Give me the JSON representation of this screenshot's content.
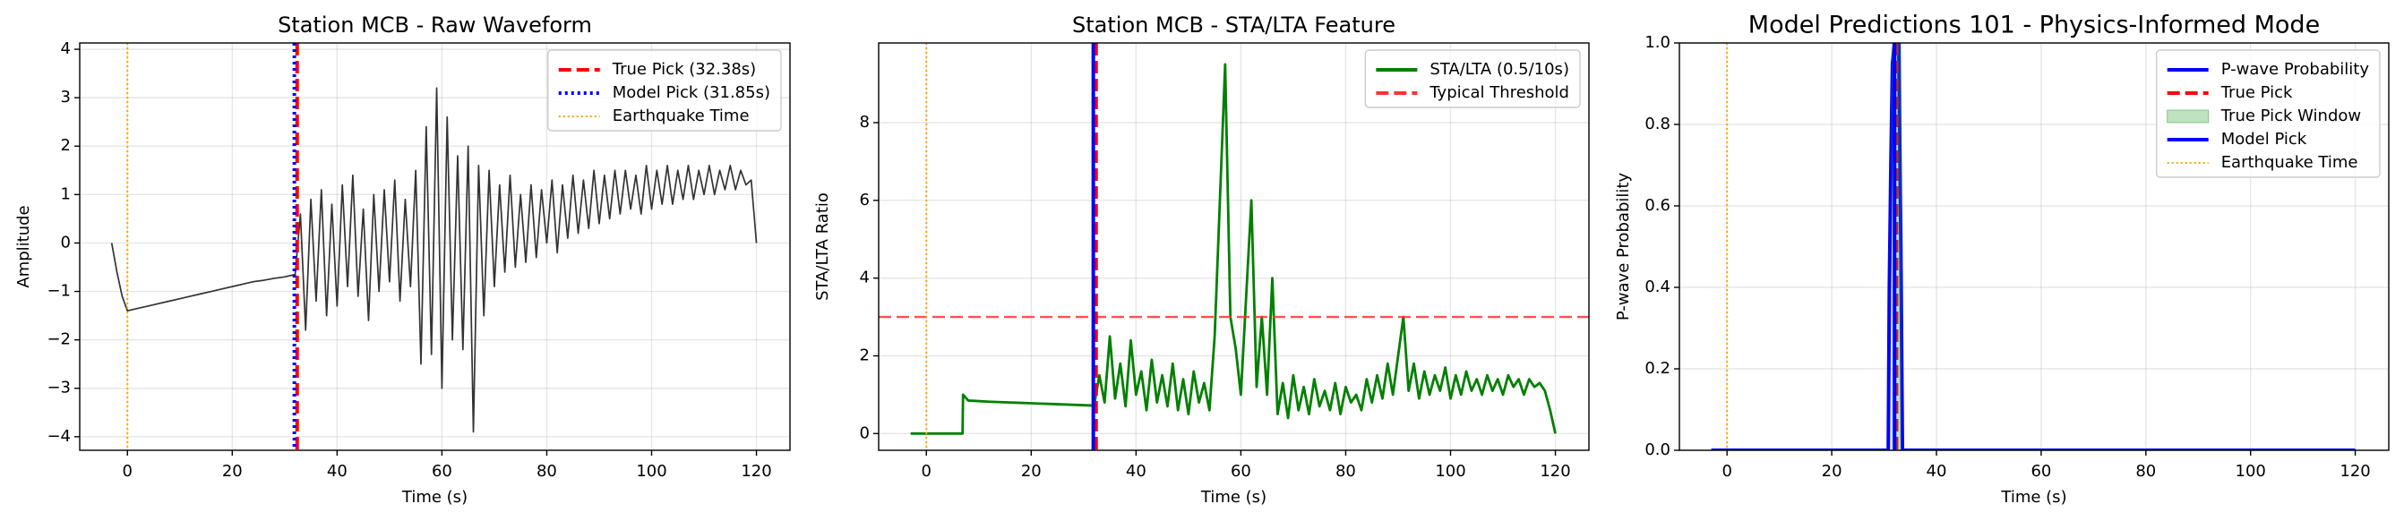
{
  "chart_data": [
    {
      "type": "line",
      "title": "Station MCB - Raw Waveform",
      "xlabel": "Time (s)",
      "ylabel": "Amplitude",
      "x": [
        -3,
        -2,
        -1,
        0,
        2,
        4,
        6,
        8,
        10,
        12,
        14,
        16,
        18,
        20,
        22,
        24,
        26,
        28,
        30,
        32,
        33,
        34,
        35,
        36,
        37,
        38,
        39,
        40,
        41,
        42,
        43,
        44,
        45,
        46,
        47,
        48,
        49,
        50,
        51,
        52,
        53,
        54,
        55,
        56,
        57,
        58,
        59,
        60,
        61,
        62,
        63,
        64,
        65,
        66,
        67,
        68,
        69,
        70,
        71,
        72,
        73,
        74,
        75,
        76,
        77,
        78,
        79,
        80,
        81,
        82,
        83,
        84,
        85,
        86,
        87,
        88,
        89,
        90,
        91,
        92,
        93,
        94,
        95,
        96,
        97,
        98,
        99,
        100,
        101,
        102,
        103,
        104,
        105,
        106,
        107,
        108,
        109,
        110,
        111,
        112,
        113,
        114,
        115,
        116,
        117,
        118,
        119,
        120
      ],
      "values": [
        0,
        -0.6,
        -1.1,
        -1.4,
        -1.35,
        -1.3,
        -1.25,
        -1.2,
        -1.15,
        -1.1,
        -1.05,
        -1.0,
        -0.95,
        -0.9,
        -0.85,
        -0.8,
        -0.77,
        -0.73,
        -0.7,
        -0.65,
        0.6,
        -1.8,
        0.9,
        -1.2,
        1.1,
        -1.5,
        0.8,
        -1.3,
        1.2,
        -0.9,
        1.4,
        -1.1,
        0.7,
        -1.6,
        1.0,
        -1.0,
        1.1,
        -0.8,
        1.3,
        -1.2,
        0.9,
        -0.9,
        1.5,
        -2.5,
        2.4,
        -2.3,
        3.2,
        -3.0,
        2.6,
        -2.0,
        1.8,
        -2.2,
        2.0,
        -3.9,
        1.6,
        -1.5,
        1.5,
        -0.9,
        1.2,
        -0.6,
        1.4,
        -0.5,
        1.0,
        -0.4,
        1.2,
        -0.3,
        1.1,
        0.0,
        1.3,
        -0.2,
        1.2,
        0.1,
        1.4,
        0.2,
        1.3,
        0.3,
        1.5,
        0.4,
        1.4,
        0.5,
        1.5,
        0.6,
        1.5,
        0.7,
        1.4,
        0.6,
        1.6,
        0.7,
        1.5,
        0.8,
        1.6,
        0.8,
        1.5,
        0.9,
        1.6,
        0.9,
        1.5,
        1.0,
        1.6,
        1.0,
        1.5,
        1.1,
        1.6,
        1.1,
        1.5,
        1.2,
        1.3,
        0
      ],
      "color": "#333333",
      "overlays": [
        {
          "kind": "vline",
          "name": "True Pick (32.38s)",
          "value": 32.38,
          "color": "#ff0000",
          "dash": "dashed"
        },
        {
          "kind": "vline",
          "name": "Model Pick (31.85s)",
          "value": 31.85,
          "color": "#0000ff",
          "dash": "dotted"
        },
        {
          "kind": "vline",
          "name": "Earthquake Time",
          "value": 0,
          "color": "#ffa500",
          "dash": "finedot"
        }
      ],
      "xlim": [
        -9.1,
        126.4
      ],
      "xticks": [
        0,
        20,
        40,
        60,
        80,
        100,
        120
      ],
      "ylim": [
        -4.28,
        4.13
      ],
      "yticks": [
        {
          "value": -4,
          "label": "−4"
        },
        {
          "value": -3,
          "label": "−3"
        },
        {
          "value": -2,
          "label": "−2"
        },
        {
          "value": -1,
          "label": "−1"
        },
        0,
        1,
        2,
        3,
        4
      ],
      "grid": true,
      "legend": "upper right"
    },
    {
      "type": "line",
      "title": "Station MCB - STA/LTA Feature",
      "xlabel": "Time (s)",
      "ylabel": "STA/LTA Ratio",
      "series": [
        {
          "name": "STA/LTA (0.5/10s)",
          "color": "#008000",
          "x": [
            -3,
            6.9,
            7,
            8,
            12,
            16,
            20,
            24,
            28,
            32,
            33,
            34,
            35,
            36,
            37,
            38,
            39,
            40,
            41,
            42,
            43,
            44,
            45,
            46,
            47,
            48,
            49,
            50,
            51,
            52,
            53,
            54,
            55,
            56,
            57,
            58,
            59,
            60,
            61,
            62,
            63,
            64,
            65,
            66,
            67,
            68,
            69,
            70,
            71,
            72,
            73,
            74,
            75,
            76,
            77,
            78,
            79,
            80,
            81,
            82,
            83,
            84,
            85,
            86,
            87,
            88,
            89,
            90,
            91,
            92,
            93,
            94,
            95,
            96,
            97,
            98,
            99,
            100,
            101,
            102,
            103,
            104,
            105,
            106,
            107,
            108,
            109,
            110,
            111,
            112,
            113,
            114,
            115,
            116,
            117,
            118,
            119,
            120
          ],
          "values": [
            0,
            0,
            1.0,
            0.85,
            0.82,
            0.8,
            0.78,
            0.76,
            0.74,
            0.72,
            1.5,
            0.8,
            2.5,
            0.9,
            1.8,
            0.7,
            2.4,
            1.0,
            1.6,
            0.6,
            1.9,
            0.8,
            1.5,
            0.7,
            1.8,
            0.6,
            1.4,
            0.5,
            1.6,
            0.8,
            1.3,
            0.6,
            2.5,
            6.0,
            9.5,
            3.0,
            2.2,
            1.0,
            3.5,
            6.0,
            1.2,
            3.0,
            1.0,
            4.0,
            0.5,
            1.3,
            0.4,
            1.5,
            0.6,
            1.2,
            0.5,
            1.4,
            0.7,
            1.1,
            0.6,
            1.3,
            0.5,
            1.2,
            0.8,
            1.0,
            0.6,
            1.4,
            0.8,
            1.5,
            0.9,
            1.8,
            1.0,
            2.0,
            3.0,
            1.1,
            1.8,
            0.9,
            1.6,
            1.0,
            1.5,
            1.1,
            1.7,
            0.9,
            1.5,
            1.0,
            1.6,
            1.1,
            1.4,
            1.0,
            1.5,
            1.1,
            1.4,
            1.0,
            1.5,
            1.2,
            1.4,
            1.0,
            1.4,
            1.2,
            1.3,
            1.1,
            0.6,
            0.0
          ]
        }
      ],
      "overlays": [
        {
          "kind": "hline",
          "name": "Typical Threshold",
          "value": 3,
          "color": "#ff3333",
          "dash": "dashed"
        },
        {
          "kind": "vline",
          "value": 32.38,
          "color": "#ff0000",
          "dash": "dashed"
        },
        {
          "kind": "vline",
          "value": 31.85,
          "color": "#0000ff",
          "dash": "solid"
        },
        {
          "kind": "vline",
          "value": 0,
          "color": "#ffa500",
          "dash": "finedot"
        }
      ],
      "xlim": [
        -9.1,
        126.4
      ],
      "xticks": [
        0,
        20,
        40,
        60,
        80,
        100,
        120
      ],
      "ylim": [
        -0.43,
        10.05
      ],
      "yticks": [
        0,
        2,
        4,
        6,
        8
      ],
      "grid": true,
      "legend": "upper right"
    },
    {
      "type": "line",
      "title": "Model Predictions 101 - Physics-Informed Mode",
      "xlabel": "Time (s)",
      "ylabel": "P-wave Probability",
      "series": [
        {
          "name": "P-wave Probability",
          "color": "#0000ff",
          "x": [
            -3,
            30.8,
            31,
            31.3,
            31.6,
            32,
            32.4,
            32.8,
            33.2,
            33.5,
            120
          ],
          "values": [
            0,
            0,
            0.4,
            0.7,
            0.95,
            1.0,
            1.0,
            1.0,
            0.5,
            0,
            0
          ]
        }
      ],
      "overlays": [
        {
          "kind": "vline",
          "name": "True Pick",
          "value": 32.38,
          "color": "#ff0000",
          "dash": "dashed"
        },
        {
          "kind": "span",
          "name": "True Pick Window",
          "range": [
            31.38,
            33.38
          ],
          "color": "#2ca02c"
        },
        {
          "kind": "vline",
          "name": "Model Pick",
          "value": 32.0,
          "color": "#0000ff",
          "dash": "solid"
        },
        {
          "kind": "vline",
          "name": "Earthquake Time",
          "value": 0,
          "color": "#ffa500",
          "dash": "finedot"
        }
      ],
      "xlim": [
        -9.1,
        126.4
      ],
      "xticks": [
        0,
        20,
        40,
        60,
        80,
        100,
        120
      ],
      "ylim": [
        0,
        1
      ],
      "yticks": [
        {
          "value": 0,
          "label": "0.0"
        },
        0.2,
        0.4,
        0.6,
        0.8,
        {
          "value": 1,
          "label": "1.0"
        }
      ],
      "grid": true,
      "legend": "upper right"
    }
  ]
}
